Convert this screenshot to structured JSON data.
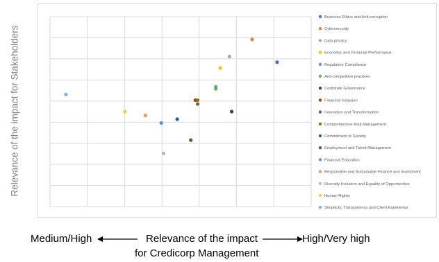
{
  "chart_data": {
    "type": "scatter",
    "title": "",
    "ylabel": "Relevance of the impact for Stakeholders",
    "xaxis": {
      "low_label": "Medium/High",
      "high_label": "High/Very high",
      "title_line1": "Relevance of the impact",
      "title_line2": "for Credicorp Management"
    },
    "xlim": [
      0,
      11.5
    ],
    "ylim": [
      0,
      10
    ],
    "grid": true,
    "legend_position": "right",
    "series": [
      {
        "name": "Business Ethics and Anti-corruption",
        "color": "#4472C4",
        "x": 10.0,
        "y": 7.6
      },
      {
        "name": "Cybersecurity",
        "color": "#ED7D31",
        "x": 8.9,
        "y": 8.8
      },
      {
        "name": "Data privacy",
        "color": "#A5A5A5",
        "x": 7.9,
        "y": 7.9
      },
      {
        "name": "Economic and Financial Performance",
        "color": "#FFC000",
        "x": 7.5,
        "y": 7.3
      },
      {
        "name": "Regulatory Compliance",
        "color": "#5B9BD5",
        "x": 7.3,
        "y": 6.3
      },
      {
        "name": "Anti-competitive practices",
        "color": "#70AD47",
        "x": 7.3,
        "y": 6.2
      },
      {
        "name": "Corporate Governance",
        "color": "#264478",
        "x": 8.0,
        "y": 5.0
      },
      {
        "name": "Financial Inclusion",
        "color": "#9E480E",
        "x": 6.4,
        "y": 5.6
      },
      {
        "name": "Innovation and Transformation",
        "color": "#636363",
        "x": 6.5,
        "y": 5.4
      },
      {
        "name": "Comprehensive Risk Management",
        "color": "#997300",
        "x": 6.5,
        "y": 5.6
      },
      {
        "name": "Commitment to Society",
        "color": "#255E91",
        "x": 5.6,
        "y": 4.6
      },
      {
        "name": "Employment and Talent Management",
        "color": "#43682B",
        "x": 6.2,
        "y": 3.5
      },
      {
        "name": "Financial Education",
        "color": "#698ED0",
        "x": 4.9,
        "y": 4.4
      },
      {
        "name": "Responsible and Sustainable Finance and Investment",
        "color": "#F1975A",
        "x": 4.2,
        "y": 4.8
      },
      {
        "name": "Diversity Inclusion and Equality of Opportunities",
        "color": "#B7B7B7",
        "x": 5.0,
        "y": 2.8
      },
      {
        "name": "Human Rights",
        "color": "#FFCD33",
        "x": 3.3,
        "y": 5.0
      },
      {
        "name": "Simplicity, Transparency and Client Experience",
        "color": "#7CAFDD",
        "x": 0.7,
        "y": 5.9
      }
    ],
    "colors": {
      "grid": "#d9d9d9",
      "legend_text": "#595959",
      "axis_text": "#808080"
    }
  }
}
